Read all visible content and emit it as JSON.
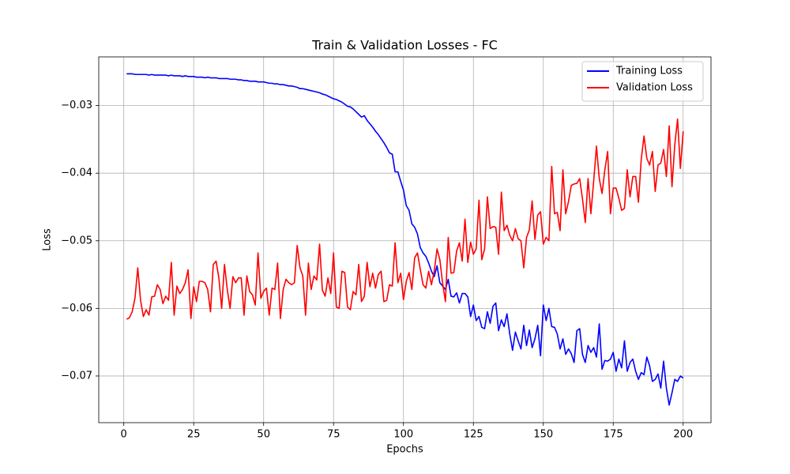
{
  "chart_data": {
    "type": "line",
    "title": "Train & Validation Losses - FC",
    "x_label": "Epochs",
    "y_label": "Loss",
    "grid": true,
    "legend_position": "upper right",
    "xlim": [
      -8.95,
      209.95
    ],
    "ylim": [
      -0.0769,
      -0.0228
    ],
    "xticks": [
      0,
      25,
      50,
      75,
      100,
      125,
      150,
      175,
      200
    ],
    "yticks": [
      {
        "value": -0.07,
        "label": "−0.07"
      },
      {
        "value": -0.06,
        "label": "−0.06"
      },
      {
        "value": -0.05,
        "label": "−0.05"
      },
      {
        "value": -0.04,
        "label": "−0.04"
      },
      {
        "value": -0.03,
        "label": "−0.03"
      }
    ],
    "x": [
      1,
      2,
      3,
      4,
      5,
      6,
      7,
      8,
      9,
      10,
      11,
      12,
      13,
      14,
      15,
      16,
      17,
      18,
      19,
      20,
      21,
      22,
      23,
      24,
      25,
      26,
      27,
      28,
      29,
      30,
      31,
      32,
      33,
      34,
      35,
      36,
      37,
      38,
      39,
      40,
      41,
      42,
      43,
      44,
      45,
      46,
      47,
      48,
      49,
      50,
      51,
      52,
      53,
      54,
      55,
      56,
      57,
      58,
      59,
      60,
      61,
      62,
      63,
      64,
      65,
      66,
      67,
      68,
      69,
      70,
      71,
      72,
      73,
      74,
      75,
      76,
      77,
      78,
      79,
      80,
      81,
      82,
      83,
      84,
      85,
      86,
      87,
      88,
      89,
      90,
      91,
      92,
      93,
      94,
      95,
      96,
      97,
      98,
      99,
      100,
      101,
      102,
      103,
      104,
      105,
      106,
      107,
      108,
      109,
      110,
      111,
      112,
      113,
      114,
      115,
      116,
      117,
      118,
      119,
      120,
      121,
      122,
      123,
      124,
      125,
      126,
      127,
      128,
      129,
      130,
      131,
      132,
      133,
      134,
      135,
      136,
      137,
      138,
      139,
      140,
      141,
      142,
      143,
      144,
      145,
      146,
      147,
      148,
      149,
      150,
      151,
      152,
      153,
      154,
      155,
      156,
      157,
      158,
      159,
      160,
      161,
      162,
      163,
      164,
      165,
      166,
      167,
      168,
      169,
      170,
      171,
      172,
      173,
      174,
      175,
      176,
      177,
      178,
      179,
      180,
      181,
      182,
      183,
      184,
      185,
      186,
      187,
      188,
      189,
      190,
      191,
      192,
      193,
      194,
      195,
      196,
      197,
      198,
      199,
      200
    ],
    "series": [
      {
        "name": "Training Loss",
        "color": "#0000ff",
        "values": [
          -0.0253,
          -0.0253,
          -0.0253,
          -0.0254,
          -0.0254,
          -0.0254,
          -0.0254,
          -0.0254,
          -0.0255,
          -0.0254,
          -0.0255,
          -0.0255,
          -0.0255,
          -0.0255,
          -0.0255,
          -0.0256,
          -0.0255,
          -0.0256,
          -0.0256,
          -0.0256,
          -0.0257,
          -0.0256,
          -0.0257,
          -0.0257,
          -0.0257,
          -0.0258,
          -0.0258,
          -0.0258,
          -0.0259,
          -0.0258,
          -0.0259,
          -0.0259,
          -0.0259,
          -0.026,
          -0.026,
          -0.026,
          -0.026,
          -0.0261,
          -0.0261,
          -0.0261,
          -0.0262,
          -0.0262,
          -0.0263,
          -0.0263,
          -0.0264,
          -0.0264,
          -0.0264,
          -0.0265,
          -0.0265,
          -0.0265,
          -0.0266,
          -0.0267,
          -0.0267,
          -0.0268,
          -0.0268,
          -0.0269,
          -0.0269,
          -0.027,
          -0.0271,
          -0.0271,
          -0.0272,
          -0.0273,
          -0.0275,
          -0.0275,
          -0.0276,
          -0.0277,
          -0.0278,
          -0.0279,
          -0.028,
          -0.0281,
          -0.0283,
          -0.0284,
          -0.0286,
          -0.0288,
          -0.029,
          -0.0291,
          -0.0293,
          -0.0295,
          -0.0298,
          -0.0301,
          -0.0302,
          -0.0305,
          -0.0309,
          -0.0313,
          -0.0317,
          -0.0315,
          -0.0322,
          -0.0327,
          -0.0332,
          -0.0338,
          -0.0343,
          -0.0349,
          -0.0355,
          -0.0362,
          -0.037,
          -0.0372,
          -0.0398,
          -0.0398,
          -0.0412,
          -0.0425,
          -0.0448,
          -0.0455,
          -0.0475,
          -0.048,
          -0.049,
          -0.051,
          -0.0518,
          -0.0523,
          -0.0533,
          -0.0545,
          -0.0553,
          -0.0537,
          -0.0562,
          -0.0567,
          -0.0572,
          -0.0557,
          -0.0582,
          -0.0583,
          -0.0577,
          -0.0592,
          -0.0578,
          -0.0578,
          -0.0583,
          -0.0612,
          -0.0595,
          -0.0618,
          -0.0612,
          -0.0628,
          -0.063,
          -0.0605,
          -0.0622,
          -0.0597,
          -0.0592,
          -0.0633,
          -0.0617,
          -0.0627,
          -0.0608,
          -0.0638,
          -0.0662,
          -0.0635,
          -0.0648,
          -0.066,
          -0.0625,
          -0.0655,
          -0.0632,
          -0.0658,
          -0.0645,
          -0.0625,
          -0.067,
          -0.0595,
          -0.0618,
          -0.06,
          -0.0627,
          -0.0628,
          -0.0638,
          -0.066,
          -0.0645,
          -0.0668,
          -0.066,
          -0.0667,
          -0.068,
          -0.0633,
          -0.063,
          -0.0668,
          -0.068,
          -0.0655,
          -0.0665,
          -0.0658,
          -0.0672,
          -0.0623,
          -0.069,
          -0.0677,
          -0.0678,
          -0.0675,
          -0.0665,
          -0.0693,
          -0.0675,
          -0.0688,
          -0.0648,
          -0.0693,
          -0.068,
          -0.0675,
          -0.0693,
          -0.0705,
          -0.0695,
          -0.0698,
          -0.0672,
          -0.0685,
          -0.0708,
          -0.0705,
          -0.0697,
          -0.0718,
          -0.0678,
          -0.0718,
          -0.0743,
          -0.0725,
          -0.0705,
          -0.0708,
          -0.07,
          -0.0703
        ]
      },
      {
        "name": "Validation Loss",
        "color": "#ff0000",
        "values": [
          -0.0616,
          -0.0614,
          -0.0605,
          -0.0585,
          -0.054,
          -0.0588,
          -0.0612,
          -0.0602,
          -0.061,
          -0.0583,
          -0.0582,
          -0.0565,
          -0.0572,
          -0.0593,
          -0.0582,
          -0.0588,
          -0.0532,
          -0.061,
          -0.0567,
          -0.0578,
          -0.0572,
          -0.0562,
          -0.0543,
          -0.0615,
          -0.0568,
          -0.059,
          -0.056,
          -0.056,
          -0.0562,
          -0.0572,
          -0.0605,
          -0.0535,
          -0.053,
          -0.0555,
          -0.06,
          -0.0535,
          -0.0572,
          -0.06,
          -0.0553,
          -0.0562,
          -0.0555,
          -0.0555,
          -0.061,
          -0.0552,
          -0.0575,
          -0.058,
          -0.0595,
          -0.0518,
          -0.0585,
          -0.0575,
          -0.057,
          -0.061,
          -0.057,
          -0.0572,
          -0.0533,
          -0.0615,
          -0.0572,
          -0.0557,
          -0.0562,
          -0.0565,
          -0.0562,
          -0.0507,
          -0.054,
          -0.0552,
          -0.061,
          -0.0533,
          -0.0572,
          -0.0552,
          -0.0558,
          -0.0505,
          -0.0573,
          -0.0582,
          -0.0555,
          -0.0578,
          -0.0518,
          -0.0598,
          -0.06,
          -0.0545,
          -0.0547,
          -0.0598,
          -0.0602,
          -0.0575,
          -0.058,
          -0.0535,
          -0.059,
          -0.0582,
          -0.0532,
          -0.0568,
          -0.0548,
          -0.057,
          -0.055,
          -0.0545,
          -0.059,
          -0.0588,
          -0.0565,
          -0.0567,
          -0.0503,
          -0.0562,
          -0.0548,
          -0.0587,
          -0.056,
          -0.0547,
          -0.0572,
          -0.0525,
          -0.0518,
          -0.0542,
          -0.0565,
          -0.057,
          -0.0545,
          -0.0565,
          -0.0545,
          -0.0512,
          -0.0528,
          -0.0563,
          -0.059,
          -0.0495,
          -0.0548,
          -0.0547,
          -0.0515,
          -0.0503,
          -0.053,
          -0.0468,
          -0.0532,
          -0.0502,
          -0.052,
          -0.0512,
          -0.044,
          -0.0528,
          -0.0512,
          -0.0435,
          -0.0482,
          -0.0479,
          -0.048,
          -0.052,
          -0.0428,
          -0.0485,
          -0.0477,
          -0.0492,
          -0.05,
          -0.0482,
          -0.0497,
          -0.05,
          -0.054,
          -0.0495,
          -0.0484,
          -0.0441,
          -0.0498,
          -0.0462,
          -0.0457,
          -0.0505,
          -0.0495,
          -0.05,
          -0.039,
          -0.046,
          -0.0458,
          -0.0485,
          -0.0395,
          -0.046,
          -0.0442,
          -0.0418,
          -0.0416,
          -0.0415,
          -0.0408,
          -0.0438,
          -0.0473,
          -0.0408,
          -0.046,
          -0.0412,
          -0.036,
          -0.0408,
          -0.043,
          -0.0395,
          -0.0368,
          -0.046,
          -0.0422,
          -0.0422,
          -0.0437,
          -0.0455,
          -0.0452,
          -0.0395,
          -0.0435,
          -0.0405,
          -0.0405,
          -0.0443,
          -0.038,
          -0.0345,
          -0.0378,
          -0.0388,
          -0.0368,
          -0.0427,
          -0.0388,
          -0.0385,
          -0.0365,
          -0.0405,
          -0.033,
          -0.042,
          -0.0358,
          -0.032,
          -0.0393,
          -0.0338
        ]
      }
    ]
  }
}
